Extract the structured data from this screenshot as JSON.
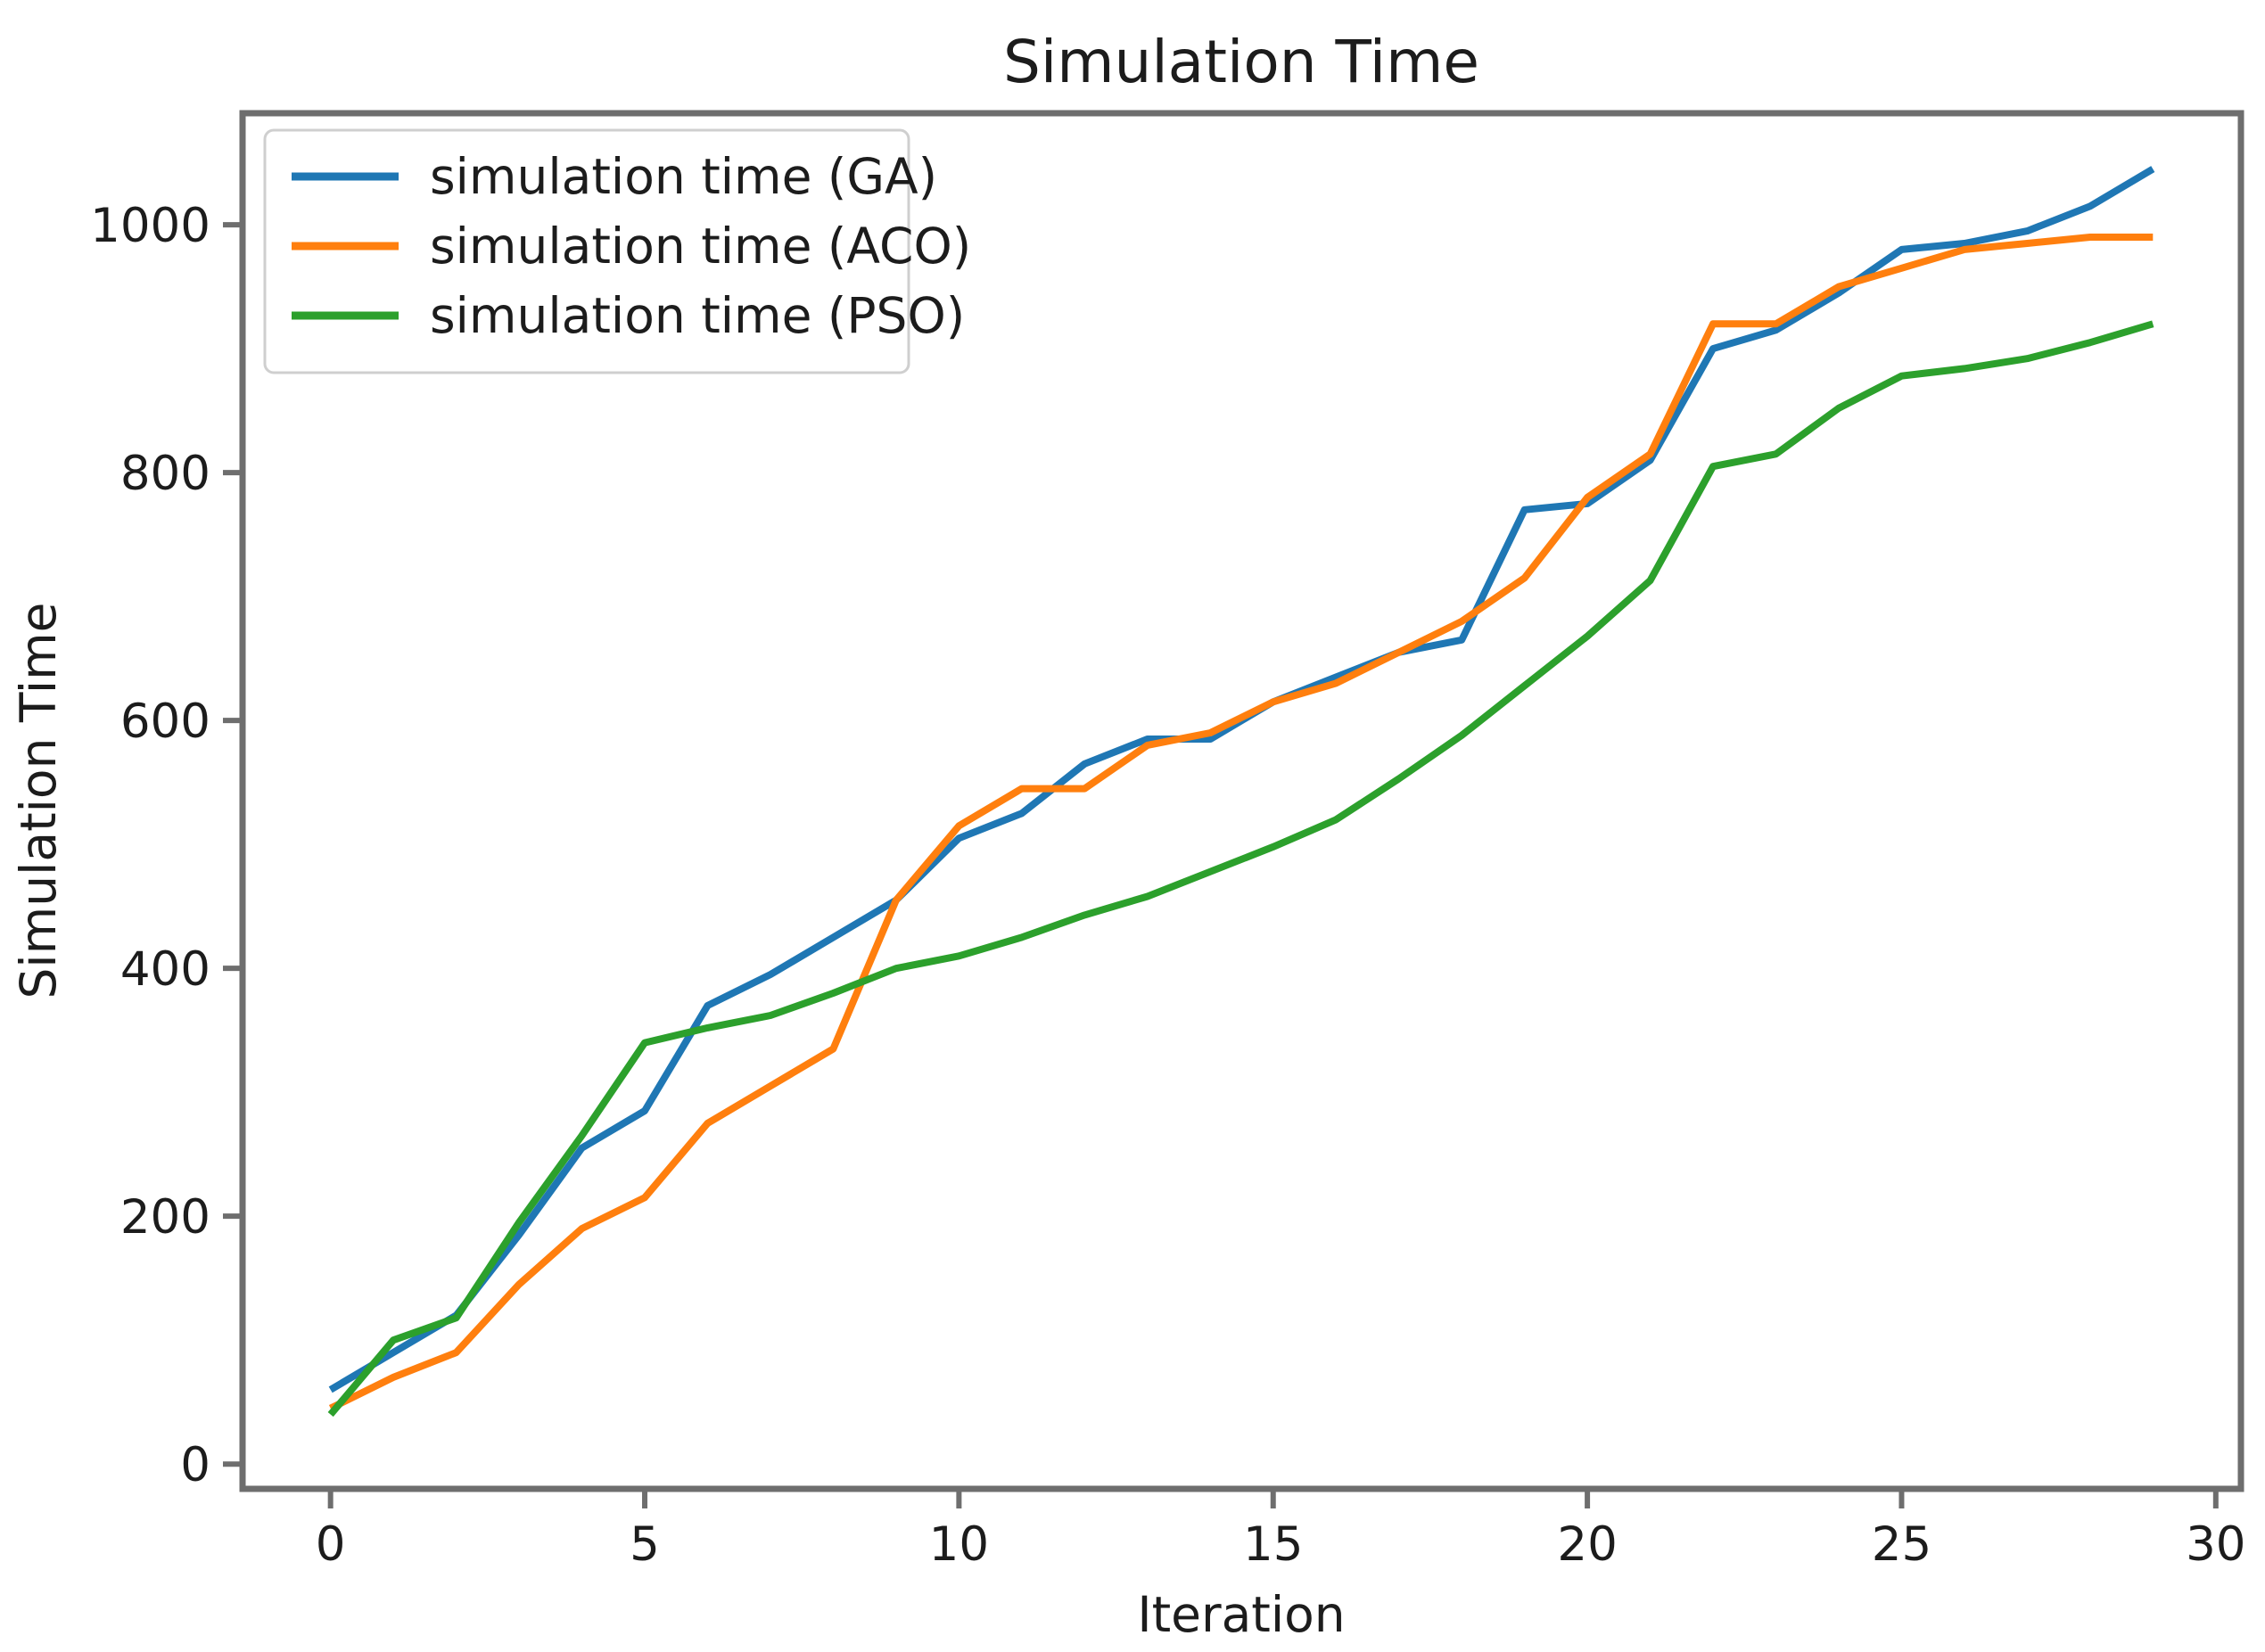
{
  "chart_data": {
    "type": "line",
    "title": "Simulation Time",
    "xlabel": "Iteration",
    "ylabel": "Simulation Time",
    "x": [
      0,
      1,
      2,
      3,
      4,
      5,
      6,
      7,
      8,
      9,
      10,
      11,
      12,
      13,
      14,
      15,
      16,
      17,
      18,
      19,
      20,
      21,
      22,
      23,
      24,
      25,
      26,
      27,
      28,
      29
    ],
    "series": [
      {
        "name": "simulation time (GA)",
        "color": "#1f77b4",
        "values": [
          60,
          90,
          120,
          185,
          255,
          285,
          370,
          395,
          425,
          455,
          505,
          525,
          565,
          585,
          585,
          615,
          635,
          655,
          665,
          770,
          775,
          810,
          900,
          915,
          945,
          980,
          985,
          995,
          1015,
          1045
        ]
      },
      {
        "name": "simulation time (ACO)",
        "color": "#ff7f0e",
        "values": [
          45,
          70,
          90,
          145,
          190,
          215,
          275,
          305,
          335,
          455,
          515,
          545,
          545,
          580,
          590,
          615,
          630,
          655,
          680,
          715,
          780,
          815,
          920,
          920,
          950,
          965,
          980,
          985,
          990,
          990
        ]
      },
      {
        "name": "simulation time (PSO)",
        "color": "#2ca02c",
        "values": [
          40,
          100,
          118,
          195,
          265,
          340,
          352,
          362,
          380,
          400,
          410,
          425,
          443,
          458,
          478,
          498,
          520,
          553,
          588,
          628,
          668,
          713,
          805,
          815,
          852,
          878,
          884,
          892,
          905,
          920
        ]
      }
    ],
    "x_ticks": [
      0,
      5,
      10,
      15,
      20,
      25,
      30
    ],
    "y_ticks": [
      0,
      200,
      400,
      600,
      800,
      1000
    ],
    "x_range": [
      -1.4,
      30.4
    ],
    "y_range": [
      -20,
      1090
    ],
    "grid": false,
    "legend_position": "upper left",
    "spine_color": "#6e6e6e",
    "text_color": "#1c1c1c",
    "background_color": "#ffffff"
  }
}
